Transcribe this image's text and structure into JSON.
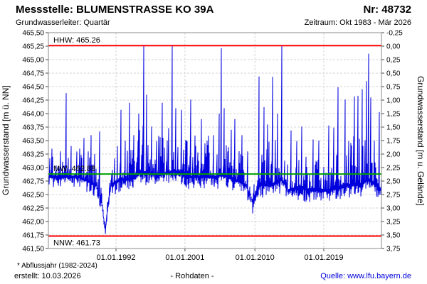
{
  "header": {
    "title": "Messstelle: BLUMENSTRASSE KO 39A",
    "number": "Nr: 48732",
    "aquifer": "Grundwasserleiter: Quartär",
    "period": "Zeitraum: Okt 1983 - Mär 2026"
  },
  "footer": {
    "footnote": "* Abflussjahr (1982-2024)",
    "created": "erstellt: 10.03.2026",
    "data_type": "- Rohdaten -",
    "source": "Quelle: www.lfu.bayern.de",
    "link_color": "#0000dd"
  },
  "chart_data": {
    "type": "line",
    "title": "Messstelle: BLUMENSTRASSE KO 39A (Nr: 48732)",
    "x_axis": {
      "start": "Okt 1983",
      "end": "Mär 2026",
      "ticks": [
        {
          "label": "01.01.1992",
          "t": 0.203
        },
        {
          "label": "01.01.2001",
          "t": 0.41
        },
        {
          "label": "01.01.2010",
          "t": 0.62
        },
        {
          "label": "01.01.2019",
          "t": 0.827
        }
      ]
    },
    "y_left": {
      "label": "Grundwasserstand [m ü. NN]",
      "min": 461.5,
      "max": 465.5,
      "step": 0.25,
      "tick_labels": [
        "465,50",
        "465,25",
        "465,00",
        "464,75",
        "464,50",
        "464,25",
        "464,00",
        "463,75",
        "463,50",
        "463,25",
        "463,00",
        "462,75",
        "462,50",
        "462,25",
        "462,00",
        "461,75",
        "461,50"
      ]
    },
    "y_right": {
      "label": "Grundwasserstand [m u. Gelände]",
      "min": -0.25,
      "max": 3.75,
      "step": 0.25,
      "tick_labels": [
        "-0,25",
        "0,00",
        "0,25",
        "0,50",
        "0,75",
        "1,00",
        "1,25",
        "1,50",
        "1,75",
        "2,00",
        "2,25",
        "2,50",
        "2,75",
        "3,00",
        "3,25",
        "3,50",
        "3,75"
      ]
    },
    "reference_lines": [
      {
        "name": "HHW",
        "label": "HHW: 465.26",
        "value": 465.26,
        "color": "#ff0000"
      },
      {
        "name": "MW",
        "label": "MW: 462.88",
        "value": 462.88,
        "color": "#00a000"
      },
      {
        "name": "NNW",
        "label": "NNW: 461.73",
        "value": 461.73,
        "color": "#ff0000"
      }
    ],
    "series": {
      "name": "Rohdaten",
      "color": "#0000dd",
      "baseline": [
        [
          0.0,
          462.85,
          0.45
        ],
        [
          0.053,
          462.85,
          0.5
        ],
        [
          0.09,
          462.85,
          0.55
        ],
        [
          0.143,
          462.7,
          0.6
        ],
        [
          0.16,
          462.35,
          0.25
        ],
        [
          0.171,
          461.85,
          0.12
        ],
        [
          0.18,
          462.4,
          0.25
        ],
        [
          0.188,
          462.7,
          0.45
        ],
        [
          0.218,
          462.8,
          0.8
        ],
        [
          0.25,
          462.8,
          1.0
        ],
        [
          0.282,
          462.95,
          1.1
        ],
        [
          0.303,
          462.9,
          0.9
        ],
        [
          0.346,
          462.9,
          1.0
        ],
        [
          0.378,
          462.95,
          1.0
        ],
        [
          0.421,
          462.85,
          0.9
        ],
        [
          0.464,
          462.85,
          0.85
        ],
        [
          0.506,
          462.85,
          1.0
        ],
        [
          0.519,
          462.9,
          1.0
        ],
        [
          0.56,
          462.8,
          0.9
        ],
        [
          0.592,
          462.7,
          0.7
        ],
        [
          0.607,
          462.5,
          0.3
        ],
        [
          0.613,
          462.35,
          0.2
        ],
        [
          0.62,
          462.5,
          0.35
        ],
        [
          0.635,
          462.7,
          1.0
        ],
        [
          0.673,
          462.7,
          1.0
        ],
        [
          0.701,
          462.8,
          0.9
        ],
        [
          0.72,
          462.6,
          0.6
        ],
        [
          0.752,
          462.65,
          0.7
        ],
        [
          0.784,
          462.6,
          0.6
        ],
        [
          0.816,
          462.6,
          0.7
        ],
        [
          0.842,
          462.6,
          0.8
        ],
        [
          0.87,
          462.65,
          1.0
        ],
        [
          0.902,
          462.7,
          1.0
        ],
        [
          0.934,
          462.7,
          1.1
        ],
        [
          0.962,
          462.8,
          1.1
        ],
        [
          0.981,
          462.7,
          0.6
        ],
        [
          1.0,
          462.6,
          0.35
        ]
      ],
      "peaks": [
        [
          0.011,
          463.35
        ],
        [
          0.036,
          463.3
        ],
        [
          0.053,
          464.38
        ],
        [
          0.068,
          463.4
        ],
        [
          0.094,
          463.35
        ],
        [
          0.107,
          463.55
        ],
        [
          0.12,
          463.3
        ],
        [
          0.128,
          463.6
        ],
        [
          0.139,
          463.25
        ],
        [
          0.154,
          463.67
        ],
        [
          0.171,
          461.79
        ],
        [
          0.207,
          463.4
        ],
        [
          0.218,
          464.07
        ],
        [
          0.231,
          463.5
        ],
        [
          0.244,
          464.2
        ],
        [
          0.256,
          463.6
        ],
        [
          0.271,
          464.0
        ],
        [
          0.286,
          465.26
        ],
        [
          0.295,
          464.35
        ],
        [
          0.31,
          463.76
        ],
        [
          0.325,
          463.4
        ],
        [
          0.342,
          464.2
        ],
        [
          0.357,
          463.5
        ],
        [
          0.372,
          465.26
        ],
        [
          0.383,
          464.1
        ],
        [
          0.4,
          464.07
        ],
        [
          0.415,
          463.5
        ],
        [
          0.427,
          464.26
        ],
        [
          0.442,
          463.4
        ],
        [
          0.46,
          463.9
        ],
        [
          0.474,
          463.2
        ],
        [
          0.496,
          463.6
        ],
        [
          0.513,
          464.0
        ],
        [
          0.519,
          465.21
        ],
        [
          0.528,
          464.1
        ],
        [
          0.539,
          463.3
        ],
        [
          0.549,
          463.7
        ],
        [
          0.56,
          463.9
        ],
        [
          0.573,
          463.3
        ],
        [
          0.581,
          463.6
        ],
        [
          0.598,
          463.3
        ],
        [
          0.613,
          462.15
        ],
        [
          0.633,
          464.69
        ],
        [
          0.648,
          464.12
        ],
        [
          0.658,
          463.8
        ],
        [
          0.673,
          464.68
        ],
        [
          0.688,
          464.0
        ],
        [
          0.701,
          465.26
        ],
        [
          0.714,
          462.49
        ],
        [
          0.729,
          463.69
        ],
        [
          0.746,
          463.49
        ],
        [
          0.761,
          463.76
        ],
        [
          0.774,
          463.2
        ],
        [
          0.795,
          463.52
        ],
        [
          0.812,
          463.5
        ],
        [
          0.827,
          463.0
        ],
        [
          0.842,
          463.78
        ],
        [
          0.857,
          463.74
        ],
        [
          0.87,
          464.49
        ],
        [
          0.891,
          464.26
        ],
        [
          0.919,
          464.32
        ],
        [
          0.93,
          464.33
        ],
        [
          0.943,
          464.45
        ],
        [
          0.955,
          464.6
        ],
        [
          0.962,
          465.11
        ],
        [
          0.968,
          464.3
        ],
        [
          0.979,
          463.5
        ],
        [
          0.994,
          464.03
        ]
      ],
      "noise": {
        "seed": 123456,
        "down_amp": 0.22
      }
    },
    "grid": {
      "color": "#d6d6d6",
      "dashed": true
    },
    "frame_color": "#8a8a8a"
  }
}
